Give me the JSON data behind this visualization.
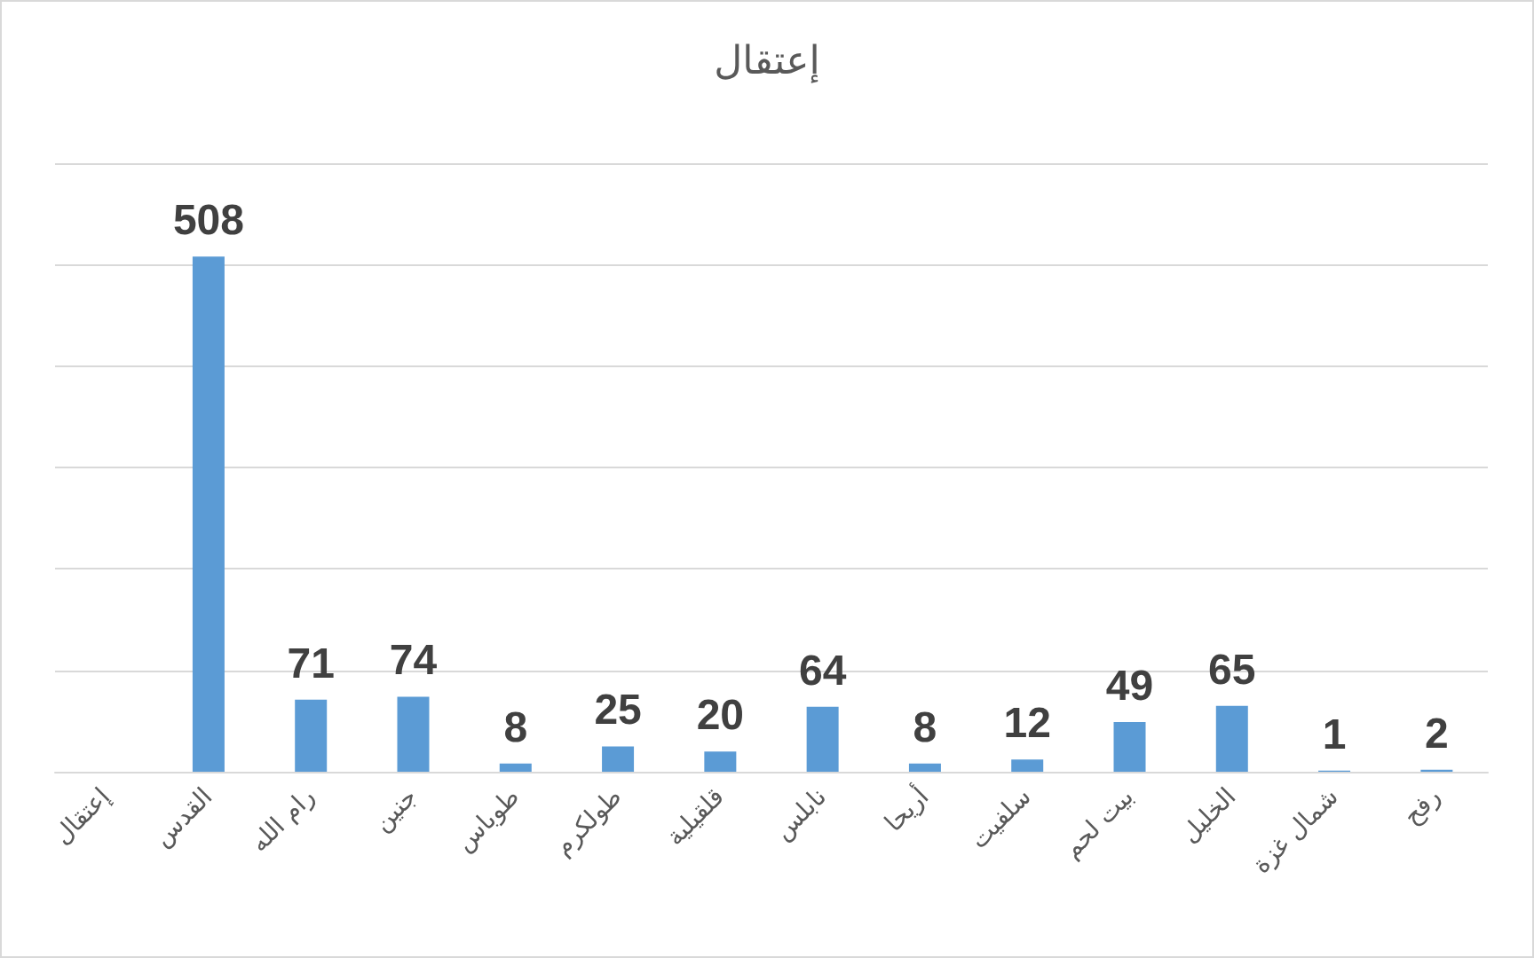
{
  "chart_data": {
    "type": "bar",
    "title": "إعتقال",
    "categories": [
      "إعتقال",
      "القدس",
      "رام الله",
      "جنين",
      "طوباس",
      "طولكرم",
      "قلقيلية",
      "نابلس",
      "أريحا",
      "سلفيت",
      "بيت لحم",
      "الخليل",
      "شمال غزة",
      "رفح"
    ],
    "values": [
      null,
      508,
      71,
      74,
      8,
      25,
      20,
      64,
      8,
      12,
      49,
      65,
      1,
      2
    ],
    "color": "#5b9bd5",
    "ylim": [
      0,
      600
    ],
    "yticks": [
      {
        "value": 0,
        "label": null
      },
      {
        "value": 100,
        "label": null
      },
      {
        "value": 200,
        "label": null
      },
      {
        "value": 300,
        "label": null
      },
      {
        "value": 400,
        "label": null
      },
      {
        "value": 500,
        "label": null
      },
      {
        "value": 600,
        "label": null
      }
    ],
    "tick_labels": "x",
    "grid": "y",
    "data_labels": true
  }
}
